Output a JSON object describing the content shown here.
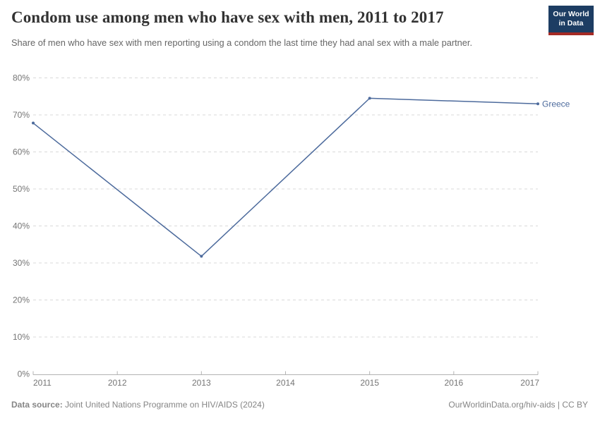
{
  "header": {
    "title": "Condom use among men who have sex with men, 2011 to 2017",
    "subtitle": "Share of men who have sex with men reporting using a condom the last time they had anal sex with a male partner.",
    "logo": {
      "line1": "Our World",
      "line2": "in Data"
    }
  },
  "chart_data": {
    "type": "line",
    "title": "Condom use among men who have sex with men, 2011 to 2017",
    "xlabel": "",
    "ylabel": "",
    "xlim": [
      2011,
      2017
    ],
    "ylim": [
      0,
      80
    ],
    "x_ticks": [
      "2011",
      "2012",
      "2013",
      "2014",
      "2015",
      "2016",
      "2017"
    ],
    "y_ticks": [
      "0%",
      "10%",
      "20%",
      "30%",
      "40%",
      "50%",
      "60%",
      "70%",
      "80%"
    ],
    "grid": "horizontal-dashed",
    "legend_position": "end-of-line-label",
    "series": [
      {
        "name": "Greece",
        "color": "#4C6A9C",
        "x": [
          2011,
          2013,
          2015,
          2017
        ],
        "values": [
          67.8,
          31.8,
          74.5,
          73.0
        ]
      }
    ]
  },
  "footer": {
    "source_label": "Data source:",
    "source_text": "Joint United Nations Programme on HIV/AIDS (2024)",
    "attribution": "OurWorldinData.org/hiv-aids | CC BY"
  },
  "colors": {
    "line": "#4C6A9C",
    "gridline": "#d9d9d9",
    "axis": "#b3b3b3",
    "tick_label": "#757575",
    "title": "#333333",
    "subtitle": "#666666",
    "footer": "#858585",
    "logo_bg": "#1d3d63",
    "logo_accent": "#a52a25"
  }
}
